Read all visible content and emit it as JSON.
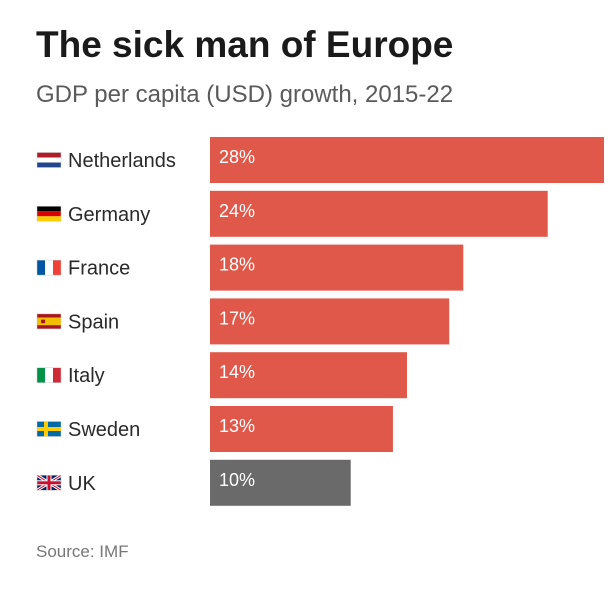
{
  "chart_data": {
    "type": "bar",
    "orientation": "horizontal",
    "title": "The sick man of Europe",
    "subtitle": "GDP per capita (USD) growth, 2015-22",
    "categories": [
      "Netherlands",
      "Germany",
      "France",
      "Spain",
      "Italy",
      "Sweden",
      "UK"
    ],
    "flag_icons": [
      "netherlands-flag-icon",
      "germany-flag-icon",
      "france-flag-icon",
      "spain-flag-icon",
      "italy-flag-icon",
      "sweden-flag-icon",
      "uk-flag-icon"
    ],
    "values": [
      28,
      24,
      18,
      17,
      14,
      13,
      10
    ],
    "value_labels": [
      "28%",
      "24%",
      "18%",
      "17%",
      "14%",
      "13%",
      "10%"
    ],
    "bar_colors": [
      "#e05849",
      "#e05849",
      "#e05849",
      "#e05849",
      "#e05849",
      "#e05849",
      "#6a6a6a"
    ],
    "xlim": [
      0,
      28
    ],
    "grid": false,
    "legend": "none",
    "source": "Source: IMF"
  }
}
